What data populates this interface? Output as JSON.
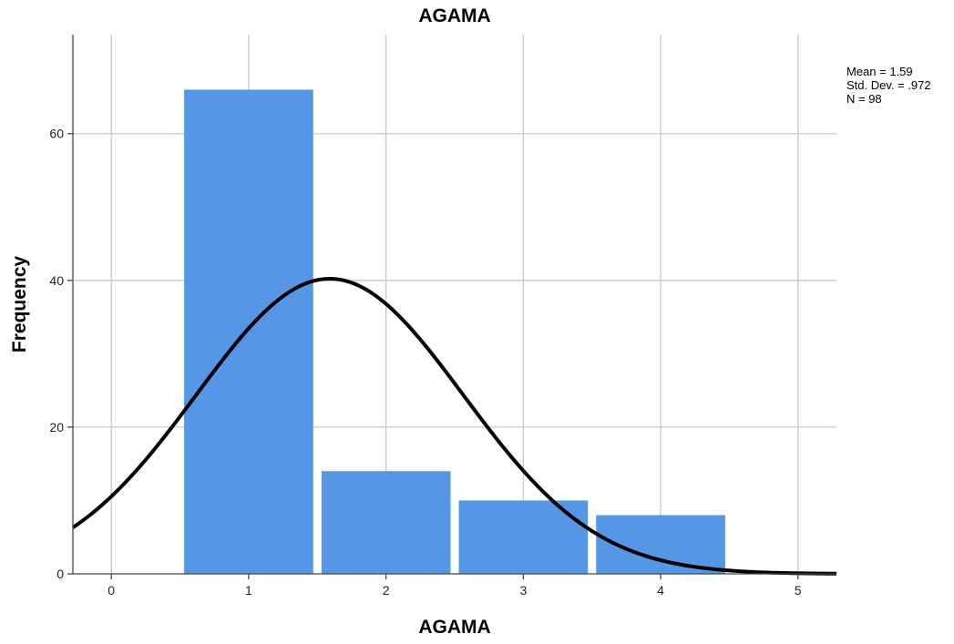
{
  "chart_data": {
    "type": "bar",
    "title": "AGAMA",
    "xlabel": "AGAMA",
    "ylabel": "Frequency",
    "categories": [
      "1",
      "2",
      "3",
      "4"
    ],
    "values": [
      66,
      14,
      10,
      8
    ],
    "x_bins": [
      1,
      2,
      3,
      4
    ],
    "xlim": [
      -0.28,
      5.28
    ],
    "ylim": [
      0,
      73.5
    ],
    "x_ticks": [
      0,
      1,
      2,
      3,
      4,
      5
    ],
    "y_ticks": [
      0,
      20,
      40,
      60
    ],
    "grid": true,
    "bar_color": "#5596e6",
    "curve_color": "#000000",
    "normal_curve": {
      "mean": 1.59,
      "std_dev": 0.972,
      "n": 98
    },
    "stats_text": [
      "Mean = 1.59",
      "Std. Dev. = .972",
      "N = 98"
    ]
  }
}
